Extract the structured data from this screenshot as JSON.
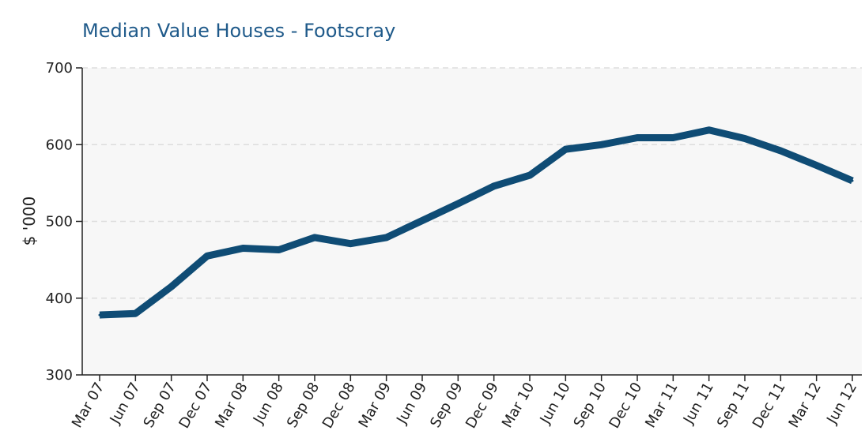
{
  "chart_data": {
    "type": "line",
    "title": "Median Value Houses - Footscray",
    "xlabel": "",
    "ylabel": "$ '000",
    "categories": [
      "Mar 07",
      "Jun 07",
      "Sep 07",
      "Dec 07",
      "Mar 08",
      "Jun 08",
      "Sep 08",
      "Dec 08",
      "Mar 09",
      "Jun 09",
      "Sep 09",
      "Dec 09",
      "Mar 10",
      "Jun 10",
      "Sep 10",
      "Dec 10",
      "Mar 11",
      "Jun 11",
      "Sep 11",
      "Dec 11",
      "Mar 12",
      "Jun 12"
    ],
    "series": [
      {
        "name": "",
        "values": [
          378,
          380,
          415,
          455,
          465,
          463,
          479,
          471,
          479,
          501,
          523,
          546,
          560,
          594,
          600,
          609,
          609,
          619,
          608,
          592,
          573,
          553
        ]
      }
    ],
    "ylim": [
      300,
      700
    ],
    "yticks": [
      300,
      400,
      500,
      600,
      700
    ],
    "grid": true,
    "legend": "none",
    "colors": {
      "line": "#0f4c75",
      "title": "#1f5a8a",
      "plot_background": "#f7f7f7",
      "grid": "#dddddd",
      "axis": "#222222"
    }
  }
}
